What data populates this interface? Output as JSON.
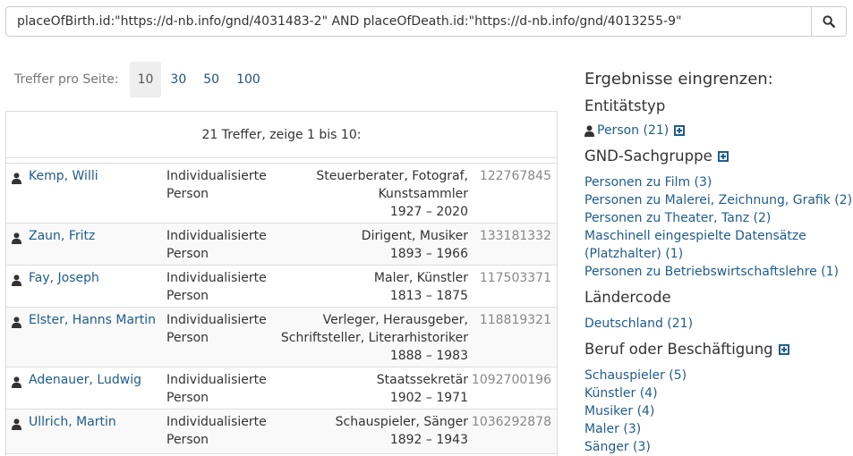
{
  "search": {
    "value": "placeOfBirth.id:\"https://d-nb.info/gnd/4031483-2\" AND placeOfDeath.id:\"https://d-nb.info/gnd/4013255-9\"",
    "button_icon": "search-icon"
  },
  "per_page": {
    "label": "Treffer pro Seite:",
    "options": [
      "10",
      "30",
      "50",
      "100"
    ],
    "selected": "10"
  },
  "results": {
    "summary": "21 Treffer, zeige 1 bis 10:",
    "rows": [
      {
        "name": "Kemp, Willi",
        "type_line1": "Individualisierte",
        "type_line2": "Person",
        "info_lines": [
          "Steuerberater, Fotograf,",
          "Kunstsammler",
          "1927 – 2020"
        ],
        "gnd": "122767845"
      },
      {
        "name": "Zaun, Fritz",
        "type_line1": "Individualisierte",
        "type_line2": "Person",
        "info_lines": [
          "Dirigent, Musiker",
          "1893 – 1966"
        ],
        "gnd": "133181332"
      },
      {
        "name": "Fay, Joseph",
        "type_line1": "Individualisierte",
        "type_line2": "Person",
        "info_lines": [
          "Maler, Künstler",
          "1813 – 1875"
        ],
        "gnd": "117503371"
      },
      {
        "name": "Elster, Hanns Martin",
        "type_line1": "Individualisierte",
        "type_line2": "Person",
        "info_lines": [
          "Verleger, Herausgeber,",
          "Schriftsteller, Literarhistoriker",
          "1888 – 1983"
        ],
        "gnd": "118819321"
      },
      {
        "name": "Adenauer, Ludwig",
        "type_line1": "Individualisierte",
        "type_line2": "Person",
        "info_lines": [
          "Staatssekretär",
          "1902 – 1971"
        ],
        "gnd": "1092700196"
      },
      {
        "name": "Ullrich, Martin",
        "type_line1": "Individualisierte",
        "type_line2": "Person",
        "info_lines": [
          "Schauspieler, Sänger",
          "1892 – 1943"
        ],
        "gnd": "1036292878"
      }
    ]
  },
  "facets": {
    "heading": "Ergebnisse eingrenzen:",
    "entity_type": {
      "title": "Entitätstyp",
      "items": [
        "Person (21)"
      ]
    },
    "subject_group": {
      "title": "GND-Sachgruppe",
      "items": [
        "Personen zu Film (3)",
        "Personen zu Malerei, Zeichnung, Grafik (2)",
        "Personen zu Theater, Tanz (2)",
        "Maschinell eingespielte Datensätze (Platzhalter) (1)",
        "Personen zu Betriebswirtschaftslehre (1)"
      ]
    },
    "country_code": {
      "title": "Ländercode",
      "items": [
        "Deutschland (21)"
      ]
    },
    "occupation": {
      "title": "Beruf oder Beschäftigung",
      "items": [
        "Schauspieler (5)",
        "Künstler (4)",
        "Musiker (4)",
        "Maler (3)",
        "Sänger (3)"
      ]
    }
  },
  "colors": {
    "link": "#1f5c8c",
    "muted": "#888888",
    "border": "#dddddd",
    "stripe": "#f9f9f9"
  }
}
